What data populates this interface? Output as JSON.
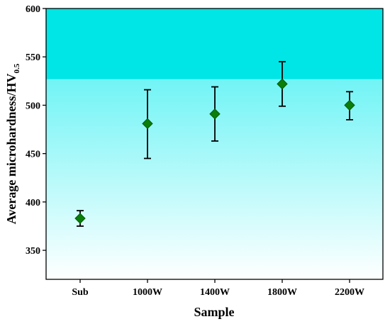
{
  "chart_data": {
    "type": "scatter",
    "categories": [
      "Sub",
      "1000W",
      "1400W",
      "1800W",
      "2200W"
    ],
    "series": [
      {
        "values": [
          383,
          481,
          491,
          522,
          500
        ],
        "error_low": [
          375,
          445,
          463,
          499,
          485
        ],
        "error_high": [
          391,
          516,
          519,
          545,
          514
        ]
      }
    ],
    "xlabel": "Sample",
    "ylabel_main": "Average microhardness/HV",
    "ylabel_sub": "0.5",
    "ylim": [
      320,
      600
    ],
    "yticks": [
      350,
      400,
      450,
      500,
      550,
      600
    ],
    "grid": false,
    "colors": {
      "marker": "#0a7d0a",
      "marker_edge": "#055a05",
      "errorbar": "#000000",
      "background_band": "#00e5e5",
      "gradient_top": "#3ff0f2",
      "gradient_bottom": "#ffffff"
    }
  }
}
